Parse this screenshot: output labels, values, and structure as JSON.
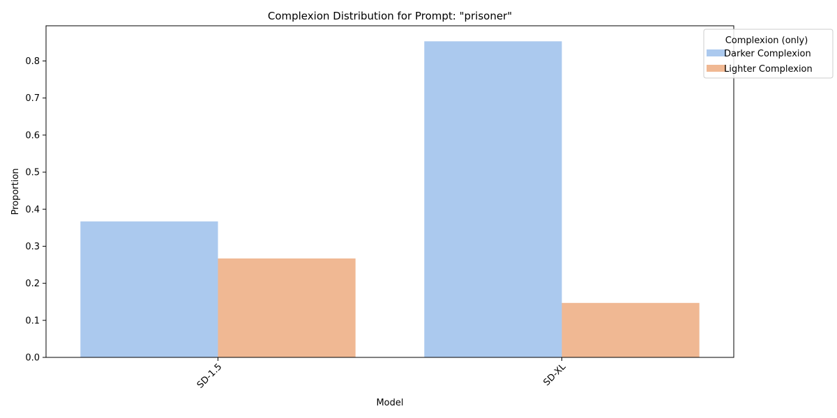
{
  "chart_data": {
    "type": "bar",
    "title": "Complexion Distribution for Prompt: \"prisoner\"",
    "xlabel": "Model",
    "ylabel": "Proportion",
    "categories": [
      "SD-1.5",
      "SD-XL"
    ],
    "series": [
      {
        "name": "Darker Complexion",
        "values": [
          0.367,
          0.853
        ],
        "color": "#abc9ee"
      },
      {
        "name": "Lighter Complexion",
        "values": [
          0.267,
          0.147
        ],
        "color": "#f0b893"
      }
    ],
    "ylim": [
      0,
      0.895
    ],
    "yticks": [
      0.0,
      0.1,
      0.2,
      0.3,
      0.4,
      0.5,
      0.6,
      0.7,
      0.8
    ],
    "ytick_labels": [
      "0.0",
      "0.1",
      "0.2",
      "0.3",
      "0.4",
      "0.5",
      "0.6",
      "0.7",
      "0.8"
    ],
    "grid": false,
    "legend": {
      "title": "Complexion (only)",
      "placement": "top-right"
    },
    "xtick_rotation": 45
  }
}
